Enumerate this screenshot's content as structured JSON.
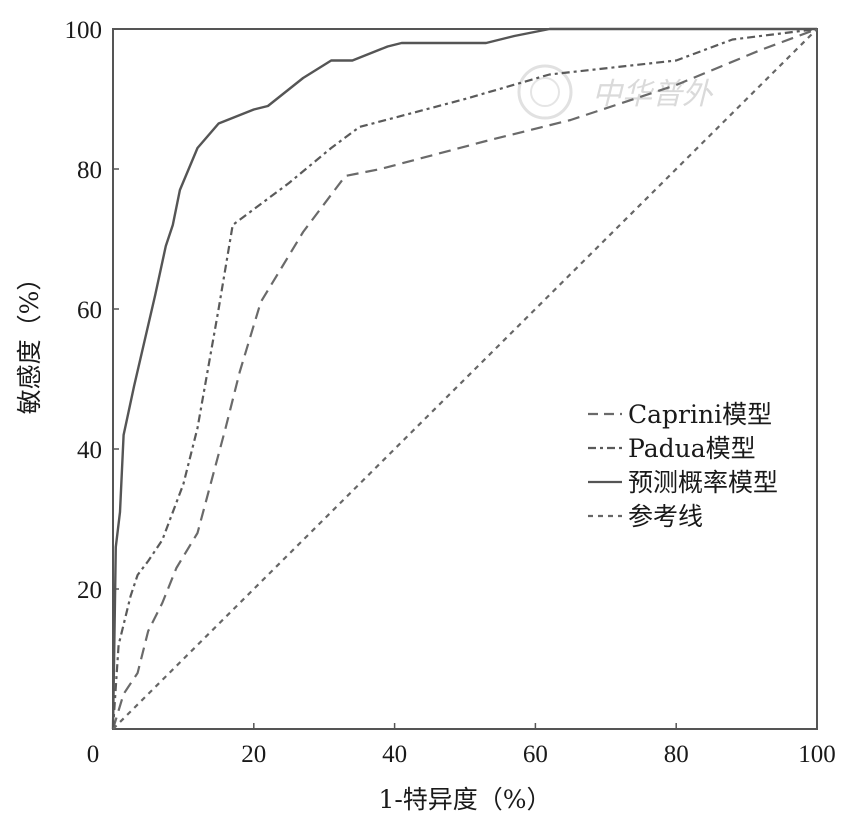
{
  "chart_data": {
    "type": "line",
    "title": "",
    "xlabel": "1-特异度（%）",
    "ylabel": "敏感度（%）",
    "xlim": [
      0,
      100
    ],
    "ylim": [
      0,
      100
    ],
    "x_ticks": [
      "0",
      "20",
      "40",
      "60",
      "80",
      "100"
    ],
    "y_ticks": [
      "20",
      "40",
      "60",
      "80",
      "100"
    ],
    "grid": false,
    "legend_position": "right-middle",
    "series": [
      {
        "name": "Caprini模型",
        "style": "dashed",
        "color": "#6a6a6a",
        "points": [
          [
            0,
            0
          ],
          [
            1.5,
            5
          ],
          [
            3.5,
            8
          ],
          [
            5,
            14
          ],
          [
            7,
            18
          ],
          [
            9,
            23
          ],
          [
            12,
            28
          ],
          [
            16,
            43
          ],
          [
            18,
            51
          ],
          [
            21,
            61
          ],
          [
            24,
            66
          ],
          [
            27,
            71
          ],
          [
            33,
            79
          ],
          [
            38,
            80
          ],
          [
            53,
            84
          ],
          [
            65,
            87
          ],
          [
            80,
            92
          ],
          [
            92,
            97
          ],
          [
            100,
            100
          ]
        ]
      },
      {
        "name": "Padua模型",
        "style": "dash-dot",
        "color": "#5a5a5a",
        "points": [
          [
            0,
            0
          ],
          [
            0.8,
            12
          ],
          [
            2.5,
            19
          ],
          [
            3.5,
            22
          ],
          [
            5,
            24
          ],
          [
            7,
            27
          ],
          [
            10,
            35
          ],
          [
            12,
            43
          ],
          [
            15,
            60
          ],
          [
            17,
            72
          ],
          [
            25,
            78
          ],
          [
            31,
            83
          ],
          [
            35,
            86
          ],
          [
            50,
            90
          ],
          [
            62,
            93.5
          ],
          [
            80,
            95.5
          ],
          [
            88,
            98.5
          ],
          [
            100,
            100
          ]
        ]
      },
      {
        "name": "预测概率模型",
        "style": "solid",
        "color": "#555555",
        "points": [
          [
            0,
            0
          ],
          [
            0.4,
            26
          ],
          [
            1,
            31
          ],
          [
            1.5,
            42
          ],
          [
            3,
            49
          ],
          [
            6,
            62
          ],
          [
            7.5,
            69
          ],
          [
            8.5,
            72
          ],
          [
            9.5,
            77
          ],
          [
            12,
            83
          ],
          [
            15,
            86.5
          ],
          [
            20,
            88.5
          ],
          [
            22,
            89
          ],
          [
            27,
            93
          ],
          [
            31,
            95.5
          ],
          [
            34,
            95.5
          ],
          [
            39,
            97.5
          ],
          [
            41,
            98
          ],
          [
            53,
            98
          ],
          [
            57,
            99
          ],
          [
            62,
            100
          ],
          [
            100,
            100
          ]
        ]
      },
      {
        "name": "参考线",
        "style": "dotted",
        "color": "#666666",
        "points": [
          [
            0,
            0
          ],
          [
            100,
            100
          ]
        ]
      }
    ]
  },
  "watermark": {
    "text": "中华普外"
  }
}
